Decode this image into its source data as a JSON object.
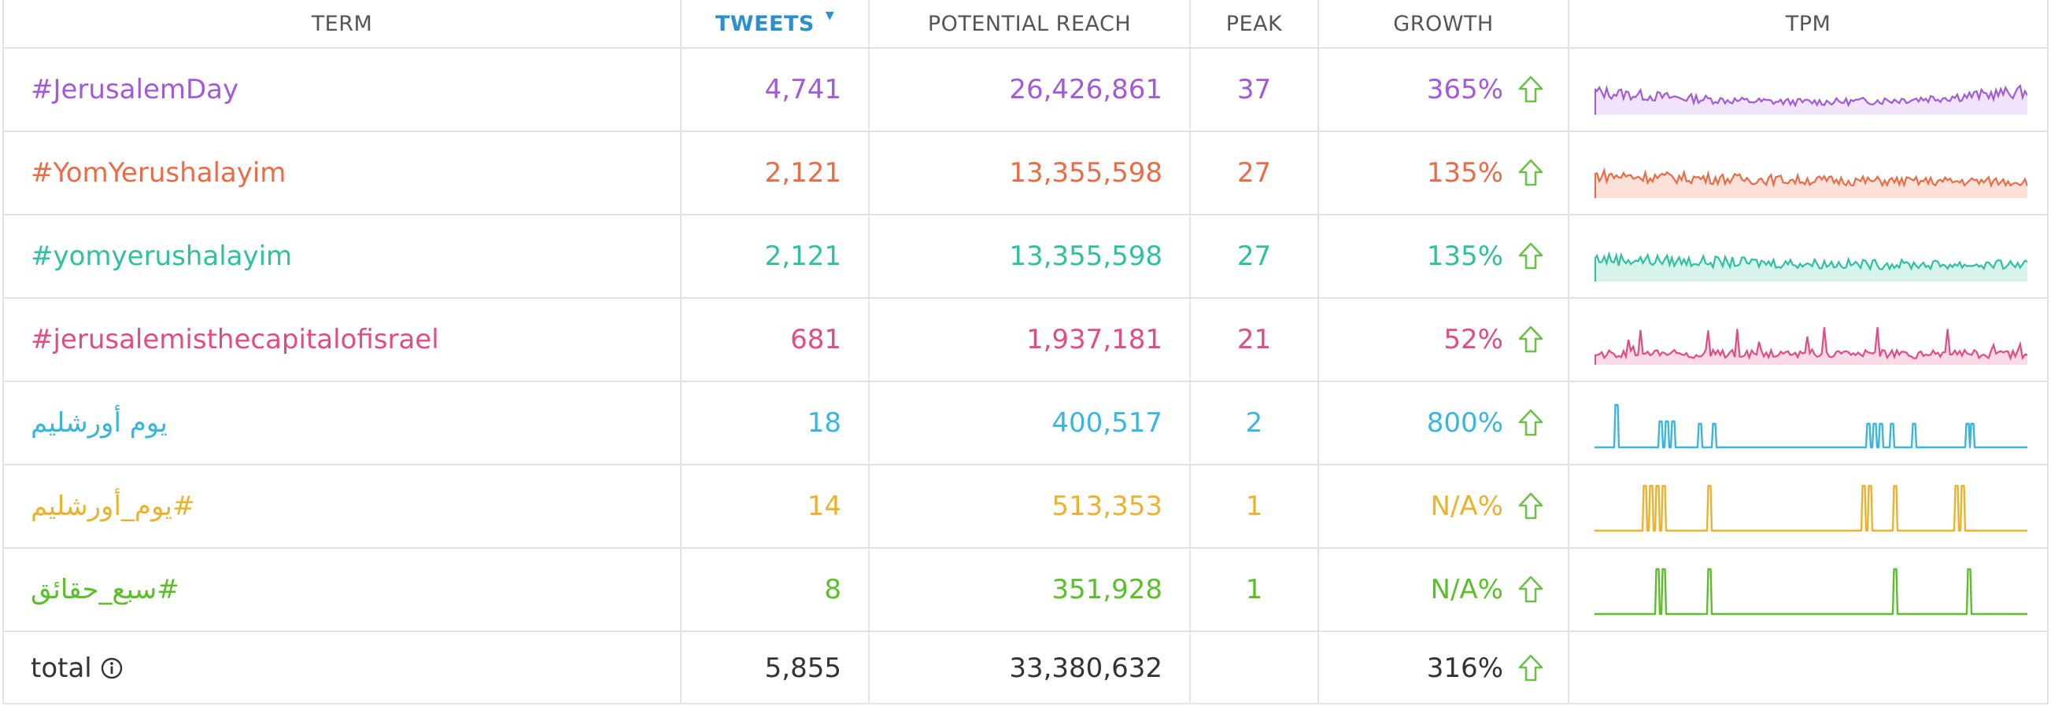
{
  "headers": {
    "term": "TERM",
    "tweets": "TWEETS",
    "reach": "POTENTIAL REACH",
    "peak": "PEAK",
    "growth": "GROWTH",
    "tpm": "TPM"
  },
  "rows": [
    {
      "term": "#JerusalemDay",
      "tweets": "4,741",
      "reach": "26,426,861",
      "peak": "37",
      "growth": "365%",
      "color": "#a25ad9",
      "fill": "#f1e4fa",
      "spark": "dense"
    },
    {
      "term": "#YomYerushalayim",
      "tweets": "2,121",
      "reach": "13,355,598",
      "peak": "27",
      "growth": "135%",
      "color": "#ea6c47",
      "fill": "#fbe1d8",
      "spark": "dense"
    },
    {
      "term": "#yomyerushalayim",
      "tweets": "2,121",
      "reach": "13,355,598",
      "peak": "27",
      "growth": "135%",
      "color": "#2fc0a0",
      "fill": "#d6f3ec",
      "spark": "dense"
    },
    {
      "term": "#jerusalemisthecapitalofisrael",
      "tweets": "681",
      "reach": "1,937,181",
      "peak": "21",
      "growth": "52%",
      "color": "#e14b86",
      "fill": "#fadbe7",
      "spark": "dense"
    },
    {
      "term": "يوم أورشليم",
      "tweets": "18",
      "reach": "400,517",
      "peak": "2",
      "growth": "800%",
      "color": "#3ab5dc",
      "fill": "none",
      "spark": "sparse"
    },
    {
      "term": "#يوم_أورشليم",
      "tweets": "14",
      "reach": "513,353",
      "peak": "1",
      "growth": "N/A%",
      "color": "#ecb22e",
      "fill": "none",
      "spark": "sparse"
    },
    {
      "term": "#سبع_حقائق",
      "tweets": "8",
      "reach": "351,928",
      "peak": "1",
      "growth": "N/A%",
      "color": "#5cbf2a",
      "fill": "none",
      "spark": "sparse"
    }
  ],
  "total": {
    "label": "total",
    "tweets": "5,855",
    "reach": "33,380,632",
    "growth": "316%",
    "color": "#333333"
  },
  "arrow_color": "#6cc04a",
  "icons": {
    "sort": "sort-desc-caret-icon",
    "growth": "arrow-up-icon",
    "info": "info-icon"
  }
}
